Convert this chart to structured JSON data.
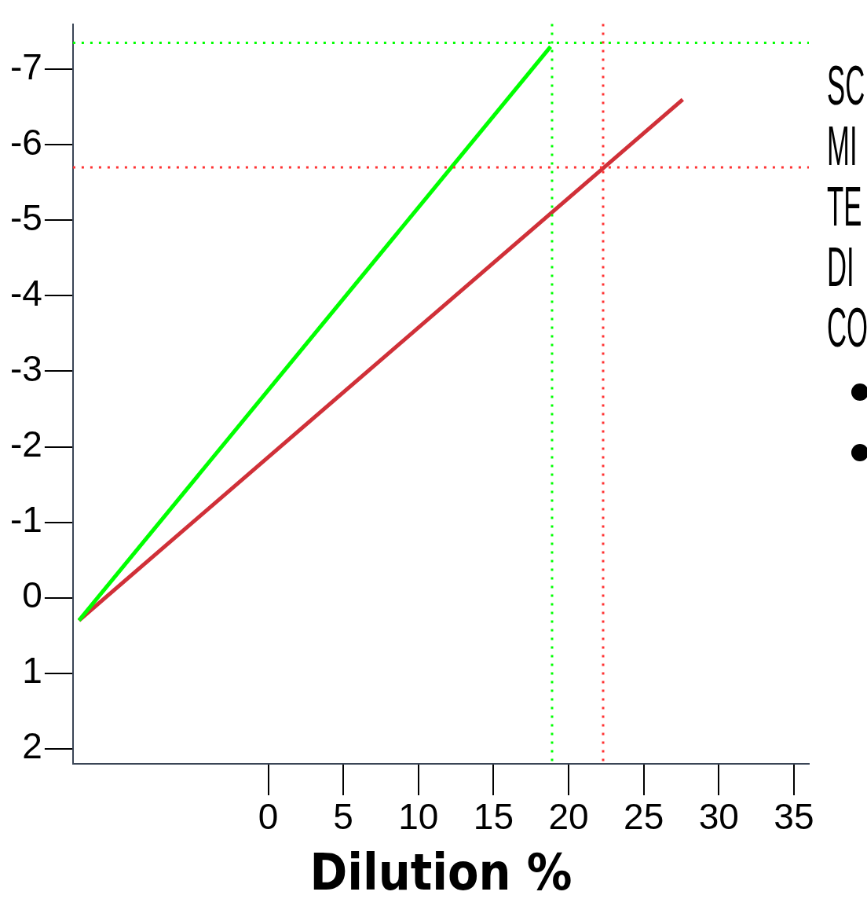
{
  "chart_data": {
    "type": "line",
    "xlabel": "Dilution %",
    "xlim": [
      -13,
      36
    ],
    "xticks": [
      0,
      5,
      10,
      15,
      20,
      25,
      30,
      35
    ],
    "ylim": [
      2.2,
      -7.6
    ],
    "yticks": [
      -7,
      -6,
      -5,
      -4,
      -3,
      -2,
      -1,
      0,
      1,
      2
    ],
    "series": [
      {
        "color": "#00ff00",
        "x": [
          -12.6,
          18.8
        ],
        "values": [
          0.3,
          -7.3
        ]
      },
      {
        "color": "#d03038",
        "x": [
          -12.6,
          27.6
        ],
        "values": [
          0.3,
          -6.6
        ]
      }
    ],
    "ref_lines": [
      {
        "axis": "y",
        "value": -7.35,
        "color": "#00ff00",
        "line_style": "dotted"
      },
      {
        "axis": "x",
        "value": 18.9,
        "color": "#00ff00",
        "line_style": "dotted"
      },
      {
        "axis": "y",
        "value": -5.7,
        "color": "#ff3333",
        "line_style": "dotted"
      },
      {
        "axis": "x",
        "value": 22.3,
        "color": "#ff3333",
        "line_style": "dotted"
      }
    ],
    "annotations": [
      "SC",
      "MI",
      "TE",
      "DI",
      "CO"
    ],
    "grid": false,
    "legend": false,
    "marker": "none",
    "line_style": "solid"
  }
}
